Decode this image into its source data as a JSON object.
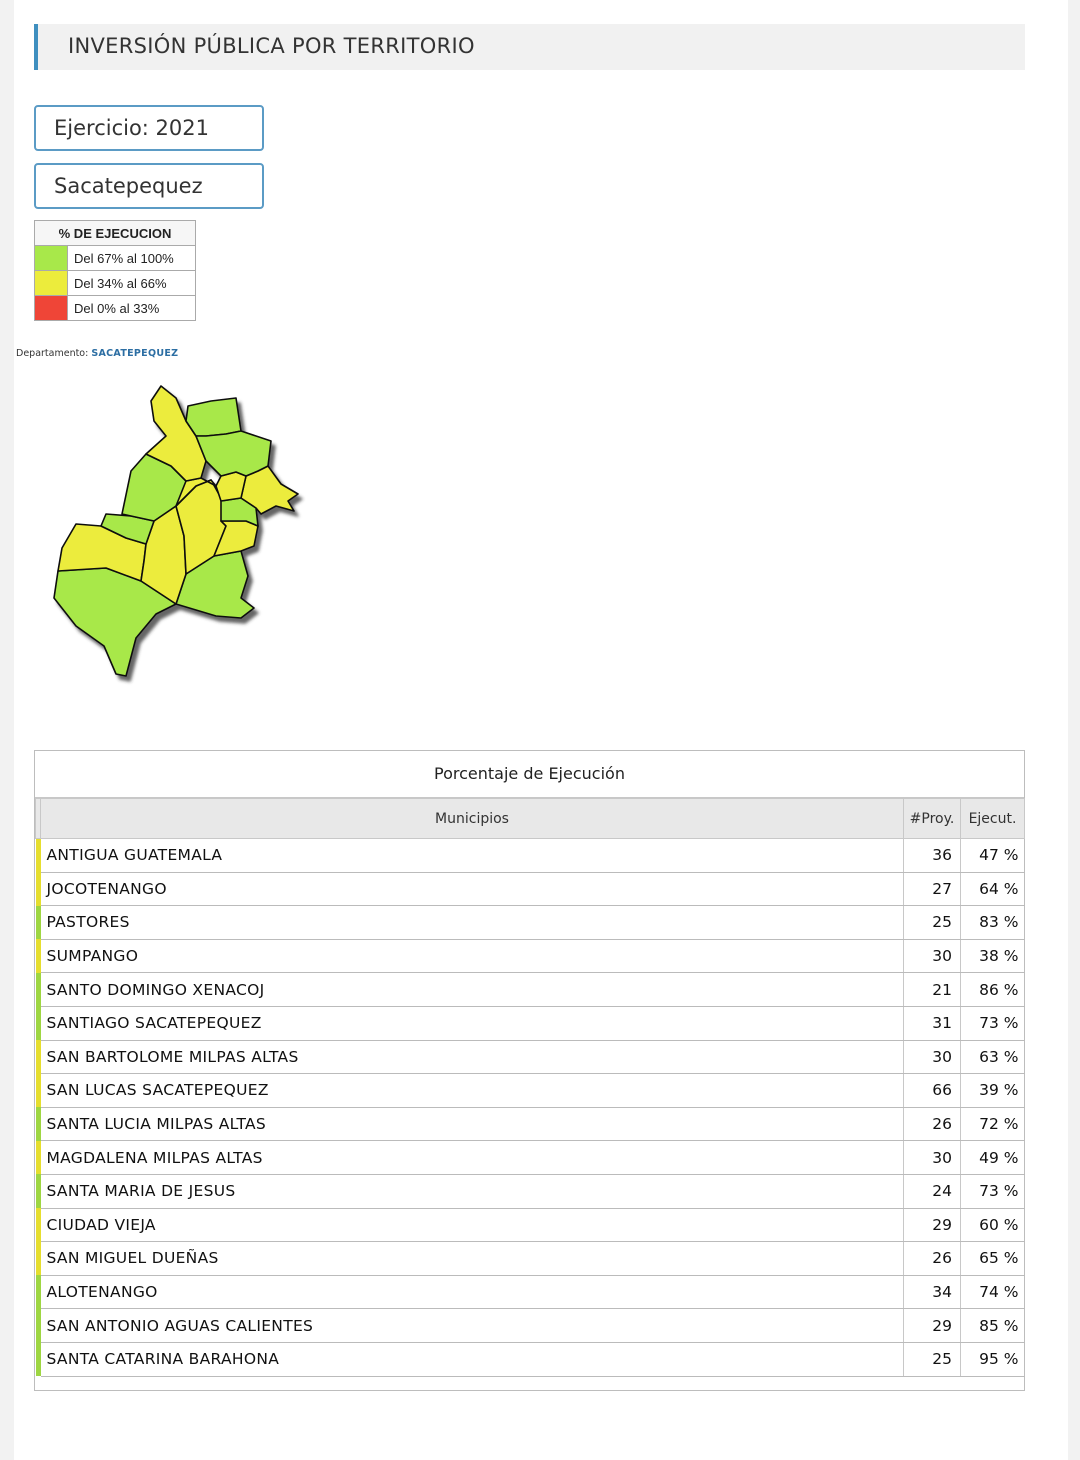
{
  "header": {
    "title": "INVERSIÓN PÚBLICA POR TERRITORIO"
  },
  "filters": {
    "year_label": "Ejercicio: 2021",
    "department": "Sacatepequez"
  },
  "legend": {
    "title": "% DE EJECUCION",
    "items": [
      {
        "label": "Del 67% al 100%",
        "color": "#a8e84a"
      },
      {
        "label": "Del 34% al 66%",
        "color": "#ecec3c"
      },
      {
        "label": "Del 0% al 33%",
        "color": "#ef4537"
      }
    ]
  },
  "map": {
    "prefix": "Departamento: ",
    "department": "SACATEPEQUEZ"
  },
  "table": {
    "title": "Porcentaje de Ejecución",
    "headers": {
      "municipio": "Municipios",
      "proyectos": "#Proy.",
      "ejecucion": "Ejecut."
    },
    "rows": [
      {
        "name": "ANTIGUA GUATEMALA",
        "proy": "36",
        "pct": "47 %",
        "color": "#e6de2e"
      },
      {
        "name": "JOCOTENANGO",
        "proy": "27",
        "pct": "64 %",
        "color": "#e6de2e"
      },
      {
        "name": "PASTORES",
        "proy": "25",
        "pct": "83 %",
        "color": "#9ed642"
      },
      {
        "name": "SUMPANGO",
        "proy": "30",
        "pct": "38 %",
        "color": "#e6de2e"
      },
      {
        "name": "SANTO DOMINGO XENACOJ",
        "proy": "21",
        "pct": "86 %",
        "color": "#9ed642"
      },
      {
        "name": "SANTIAGO SACATEPEQUEZ",
        "proy": "31",
        "pct": "73 %",
        "color": "#9ed642"
      },
      {
        "name": "SAN BARTOLOME MILPAS ALTAS",
        "proy": "30",
        "pct": "63 %",
        "color": "#e6de2e"
      },
      {
        "name": "SAN LUCAS SACATEPEQUEZ",
        "proy": "66",
        "pct": "39 %",
        "color": "#e6de2e"
      },
      {
        "name": "SANTA LUCIA MILPAS ALTAS",
        "proy": "26",
        "pct": "72 %",
        "color": "#9ed642"
      },
      {
        "name": "MAGDALENA MILPAS ALTAS",
        "proy": "30",
        "pct": "49 %",
        "color": "#e6de2e"
      },
      {
        "name": "SANTA MARIA DE JESUS",
        "proy": "24",
        "pct": "73 %",
        "color": "#9ed642"
      },
      {
        "name": "CIUDAD VIEJA",
        "proy": "29",
        "pct": "60 %",
        "color": "#e6de2e"
      },
      {
        "name": "SAN MIGUEL DUEÑAS",
        "proy": "26",
        "pct": "65 %",
        "color": "#e6de2e"
      },
      {
        "name": "ALOTENANGO",
        "proy": "34",
        "pct": "74 %",
        "color": "#9ed642"
      },
      {
        "name": "SAN ANTONIO AGUAS CALIENTES",
        "proy": "29",
        "pct": "85 %",
        "color": "#9ed642"
      },
      {
        "name": "SANTA CATARINA BARAHONA",
        "proy": "25",
        "pct": "95 %",
        "color": "#9ed642"
      }
    ]
  }
}
